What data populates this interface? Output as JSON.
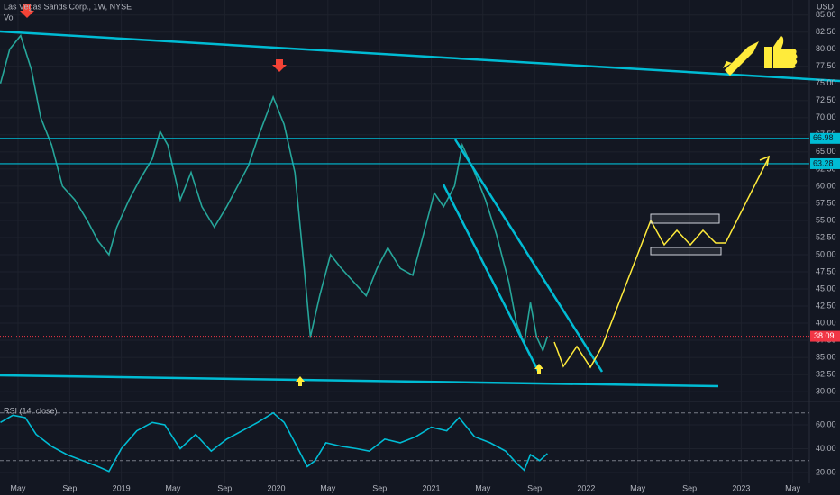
{
  "chart_data": {
    "type": "line",
    "title": "Las Vegas Sands Corp., 1W, NYSE",
    "volume_label": "Vol",
    "currency": "USD",
    "color": "#26a69a",
    "x": [
      2018.22,
      2018.28,
      2018.35,
      2018.42,
      2018.48,
      2018.55,
      2018.62,
      2018.7,
      2018.78,
      2018.85,
      2018.92,
      2018.97,
      2019.05,
      2019.12,
      2019.2,
      2019.25,
      2019.3,
      2019.38,
      2019.45,
      2019.52,
      2019.6,
      2019.68,
      2019.75,
      2019.82,
      2019.88,
      2019.93,
      2019.98,
      2020.05,
      2020.12,
      2020.18,
      2020.22,
      2020.28,
      2020.35,
      2020.42,
      2020.5,
      2020.58,
      2020.65,
      2020.72,
      2020.8,
      2020.88,
      2020.95,
      2021.02,
      2021.08,
      2021.15,
      2021.2,
      2021.28,
      2021.35,
      2021.42,
      2021.5,
      2021.55,
      2021.6,
      2021.64,
      2021.68,
      2021.72,
      2021.75
    ],
    "values": [
      75,
      80,
      82,
      77,
      70,
      66,
      60,
      58,
      55,
      52,
      50,
      54,
      58,
      61,
      64,
      68,
      66,
      58,
      62,
      57,
      54,
      57,
      60,
      63,
      67,
      70,
      73,
      69,
      62,
      48,
      38,
      44,
      50,
      48,
      46,
      44,
      48,
      51,
      48,
      47,
      53,
      59,
      57,
      60,
      66,
      62,
      58,
      53,
      46,
      40,
      37,
      43,
      38,
      36,
      38.09
    ],
    "last_price": 38.09,
    "levels": [
      66.98,
      63.28
    ],
    "xlim": [
      2018.217,
      2023.44
    ],
    "xticks": [
      {
        "value": 2018.333,
        "label": "May"
      },
      {
        "value": 2018.667,
        "label": "Sep"
      },
      {
        "value": 2019,
        "label": "2019"
      },
      {
        "value": 2019.333,
        "label": "May"
      },
      {
        "value": 2019.667,
        "label": "Sep"
      },
      {
        "value": 2020,
        "label": "2020"
      },
      {
        "value": 2020.333,
        "label": "May"
      },
      {
        "value": 2020.667,
        "label": "Sep"
      },
      {
        "value": 2021,
        "label": "2021"
      },
      {
        "value": 2021.333,
        "label": "May"
      },
      {
        "value": 2021.667,
        "label": "Sep"
      },
      {
        "value": 2022,
        "label": "2022"
      },
      {
        "value": 2022.333,
        "label": "May"
      },
      {
        "value": 2022.667,
        "label": "Sep"
      },
      {
        "value": 2023,
        "label": "2023"
      },
      {
        "value": 2023.333,
        "label": "May"
      }
    ],
    "ylim": [
      28.7,
      87.2
    ],
    "yticks": [
      {
        "value": 85,
        "label": "85.00"
      },
      {
        "value": 82.5,
        "label": "82.50"
      },
      {
        "value": 80,
        "label": "80.00"
      },
      {
        "value": 77.5,
        "label": "77.50"
      },
      {
        "value": 75,
        "label": "75.00"
      },
      {
        "value": 72.5,
        "label": "72.50"
      },
      {
        "value": 70,
        "label": "70.00"
      },
      {
        "value": 67.5,
        "label": "67.50"
      },
      {
        "value": 65,
        "label": "65.00"
      },
      {
        "value": 62.5,
        "label": "62.50"
      },
      {
        "value": 60,
        "label": "60.00"
      },
      {
        "value": 57.5,
        "label": "57.50"
      },
      {
        "value": 55,
        "label": "55.00"
      },
      {
        "value": 52.5,
        "label": "52.50"
      },
      {
        "value": 50,
        "label": "50.00"
      },
      {
        "value": 47.5,
        "label": "47.50"
      },
      {
        "value": 45,
        "label": "45.00"
      },
      {
        "value": 42.5,
        "label": "42.50"
      },
      {
        "value": 40,
        "label": "40.00"
      },
      {
        "value": 37.5,
        "label": "37.50"
      },
      {
        "value": 35,
        "label": "35.00"
      },
      {
        "value": 32.5,
        "label": "32.50"
      },
      {
        "value": 30,
        "label": "30.00"
      }
    ],
    "rsi": {
      "title": "RSI (14, close)",
      "color": "#00bcd4",
      "x": [
        2018.22,
        2018.3,
        2018.38,
        2018.45,
        2018.55,
        2018.65,
        2018.75,
        2018.85,
        2018.92,
        2019.0,
        2019.1,
        2019.2,
        2019.28,
        2019.38,
        2019.48,
        2019.58,
        2019.68,
        2019.78,
        2019.88,
        2019.98,
        2020.05,
        2020.12,
        2020.2,
        2020.25,
        2020.32,
        2020.42,
        2020.52,
        2020.6,
        2020.7,
        2020.8,
        2020.9,
        2021.0,
        2021.1,
        2021.18,
        2021.28,
        2021.38,
        2021.48,
        2021.55,
        2021.6,
        2021.64,
        2021.7,
        2021.75
      ],
      "values": [
        62,
        68,
        66,
        52,
        42,
        35,
        30,
        25,
        21,
        40,
        55,
        62,
        60,
        40,
        52,
        38,
        48,
        55,
        62,
        70,
        62,
        45,
        25,
        30,
        45,
        42,
        40,
        38,
        48,
        45,
        50,
        58,
        55,
        66,
        50,
        45,
        38,
        28,
        22,
        35,
        30,
        36
      ],
      "bands": [
        30,
        70
      ],
      "ylim": [
        11,
        77.3
      ],
      "yticks": [
        {
          "value": 60,
          "label": "60.00"
        },
        {
          "value": 40,
          "label": "40.00"
        },
        {
          "value": 20,
          "label": "20.00"
        }
      ]
    }
  }
}
